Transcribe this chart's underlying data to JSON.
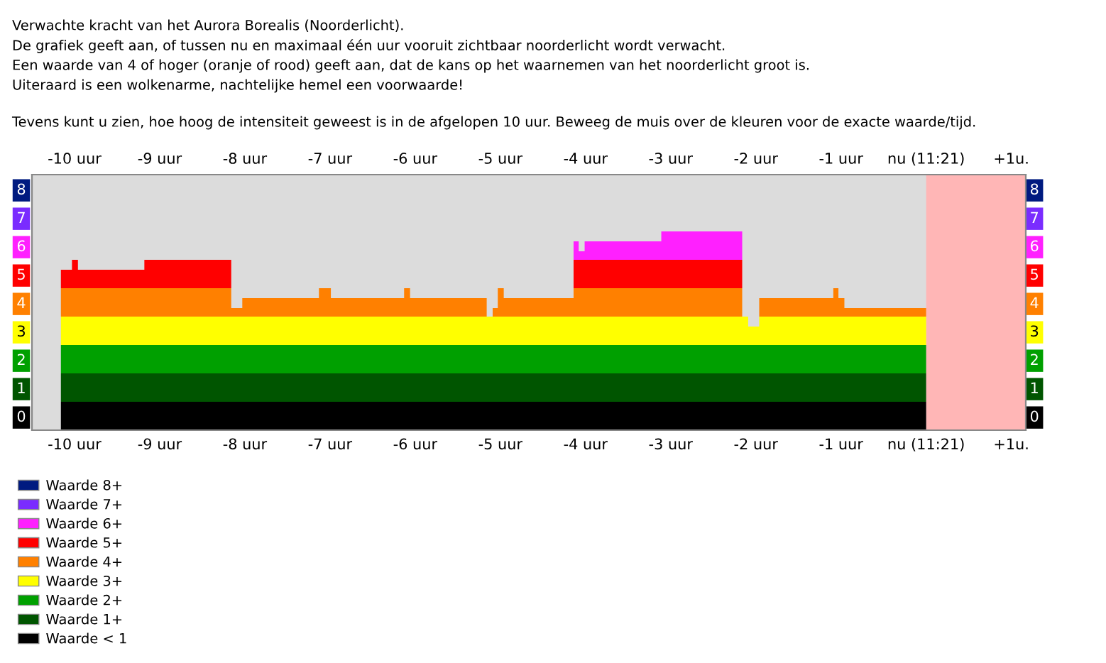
{
  "chart_data": {
    "type": "area",
    "stacked": true,
    "title": "Verwachte kracht van het Aurora Borealis (Noorderlicht).",
    "annotations": [
      "De grafiek geeft aan, of tussen nu en maximaal één uur vooruit zichtbaar noorderlicht wordt verwacht.",
      "Een waarde van 4 of hoger (oranje of rood) geeft aan, dat de kans op het waarnemen van het noorderlicht groot is.",
      "Uiteraard is een wolkenarme, nachtelijke hemel een voorwaarde!",
      "Tevens kunt u zien, hoe hoog de intensiteit geweest is in de afgelopen 10 uur. Beweeg de muis over de kleuren voor de exacte waarde/tijd."
    ],
    "x": [
      -10.16,
      -10.03,
      -10.03,
      -9.96,
      -9.96,
      -9.18,
      -9.18,
      -8.16,
      -8.16,
      -8.03,
      -8.03,
      -7.13,
      -7.13,
      -6.99,
      -6.99,
      -6.13,
      -6.13,
      -6.06,
      -6.06,
      -5.16,
      -5.16,
      -5.09,
      -5.09,
      -5.03,
      -5.03,
      -4.96,
      -4.96,
      -4.14,
      -4.14,
      -4.08,
      -4.08,
      -4.01,
      -4.01,
      -3.11,
      -3.11,
      -2.16,
      -2.16,
      -2.09,
      -2.09,
      -1.96,
      -1.96,
      -1.09,
      -1.09,
      -1.03,
      -1.03,
      -0.96,
      -0.96,
      0
    ],
    "series": [
      {
        "name": "Waarde < 1",
        "color": "#000000",
        "values": [
          1,
          1,
          1,
          1,
          1,
          1,
          1,
          1,
          1,
          1,
          1,
          1,
          1,
          1,
          1,
          1,
          1,
          1,
          1,
          1,
          1,
          1,
          1,
          1,
          1,
          1,
          1,
          1,
          1,
          1,
          1,
          1,
          1,
          1,
          1,
          1,
          1,
          1,
          1,
          1,
          1,
          1,
          1,
          1,
          1,
          1,
          1,
          1
        ]
      },
      {
        "name": "Waarde 1+",
        "color": "#005500",
        "values": [
          1,
          1,
          1,
          1,
          1,
          1,
          1,
          1,
          1,
          1,
          1,
          1,
          1,
          1,
          1,
          1,
          1,
          1,
          1,
          1,
          1,
          1,
          1,
          1,
          1,
          1,
          1,
          1,
          1,
          1,
          1,
          1,
          1,
          1,
          1,
          1,
          1,
          1,
          1,
          1,
          1,
          1,
          1,
          1,
          1,
          1,
          1,
          1
        ]
      },
      {
        "name": "Waarde 2+",
        "color": "#00a000",
        "values": [
          1,
          1,
          1,
          1,
          1,
          1,
          1,
          1,
          1,
          1,
          1,
          1,
          1,
          1,
          1,
          1,
          1,
          1,
          1,
          1,
          1,
          1,
          1,
          1,
          1,
          1,
          1,
          1,
          1,
          1,
          1,
          1,
          1,
          1,
          1,
          1,
          1,
          1,
          1,
          1,
          1,
          1,
          1,
          1,
          1,
          1,
          1,
          1
        ]
      },
      {
        "name": "Waarde 3+",
        "color": "#ffff00",
        "values": [
          1,
          1,
          1,
          1,
          1,
          1,
          1,
          1,
          1,
          1,
          1,
          1,
          1,
          1,
          1,
          1,
          1,
          1,
          1,
          1,
          1,
          1,
          1,
          1,
          1,
          1,
          1,
          1,
          1,
          1,
          1,
          1,
          1,
          1,
          1,
          1,
          1,
          1,
          0.65,
          0.65,
          1,
          1,
          1,
          1,
          1,
          1,
          1,
          1
        ]
      },
      {
        "name": "Waarde 4+",
        "color": "#ff8000",
        "values": [
          1,
          1,
          1,
          1,
          1,
          1,
          1,
          1,
          0.3,
          0.3,
          0.65,
          0.65,
          1,
          1,
          0.65,
          0.65,
          1,
          1,
          0.65,
          0.65,
          0,
          0,
          0.3,
          0.3,
          1,
          1,
          0.65,
          0.65,
          1,
          1,
          1,
          1,
          1,
          1,
          1,
          1,
          0,
          0,
          0,
          0,
          0.65,
          0.65,
          1,
          1,
          0.65,
          0.65,
          0.3,
          0.3
        ]
      },
      {
        "name": "Waarde 5+",
        "color": "#ff0000",
        "values": [
          0.65,
          0.65,
          1,
          1,
          0.65,
          0.65,
          1,
          1,
          0,
          0,
          0,
          0,
          0,
          0,
          0,
          0,
          0,
          0,
          0,
          0,
          0,
          0,
          0,
          0,
          0,
          0,
          0,
          0,
          1,
          1,
          1,
          1,
          1,
          1,
          1,
          1,
          0,
          0,
          0,
          0,
          0,
          0,
          0,
          0,
          0,
          0,
          0,
          0
        ]
      },
      {
        "name": "Waarde 6+",
        "color": "#ff20ff",
        "values": [
          0,
          0,
          0,
          0,
          0,
          0,
          0,
          0,
          0,
          0,
          0,
          0,
          0,
          0,
          0,
          0,
          0,
          0,
          0,
          0,
          0,
          0,
          0,
          0,
          0,
          0,
          0,
          0,
          0.65,
          0.65,
          0.3,
          0.3,
          0.65,
          0.65,
          1,
          1,
          0,
          0,
          0,
          0,
          0,
          0,
          0,
          0,
          0,
          0,
          0,
          0
        ]
      },
      {
        "name": "Waarde 7+",
        "color": "#7a2cff",
        "values": [
          null,
          null,
          null,
          null,
          null,
          null,
          null,
          null,
          null,
          null,
          null,
          null,
          null,
          null,
          null,
          null,
          null,
          null,
          null,
          null,
          null,
          null,
          null,
          null,
          null,
          null,
          null,
          null,
          null,
          null,
          null,
          null,
          null,
          null,
          null,
          null,
          null,
          null,
          null,
          null,
          null,
          null,
          null,
          null,
          null,
          null,
          null,
          null
        ]
      },
      {
        "name": "Waarde 8+",
        "color": "#001a80",
        "values": [
          null,
          null,
          null,
          null,
          null,
          null,
          null,
          null,
          null,
          null,
          null,
          null,
          null,
          null,
          null,
          null,
          null,
          null,
          null,
          null,
          null,
          null,
          null,
          null,
          null,
          null,
          null,
          null,
          null,
          null,
          null,
          null,
          null,
          null,
          null,
          null,
          null,
          null,
          null,
          null,
          null,
          null,
          null,
          null,
          null,
          null,
          null,
          null
        ]
      }
    ],
    "xlim": [
      -10.5,
      1.17
    ],
    "xticks": [
      {
        "value": -10,
        "label": "-10 uur"
      },
      {
        "value": -9,
        "label": "-9 uur"
      },
      {
        "value": -8,
        "label": "-8 uur"
      },
      {
        "value": -7,
        "label": "-7 uur"
      },
      {
        "value": -6,
        "label": "-6 uur"
      },
      {
        "value": -5,
        "label": "-5 uur"
      },
      {
        "value": -4,
        "label": "-4 uur"
      },
      {
        "value": -3,
        "label": "-3 uur"
      },
      {
        "value": -2,
        "label": "-2 uur"
      },
      {
        "value": -1,
        "label": "-1 uur"
      },
      {
        "value": 0,
        "label": "nu (11:21)"
      },
      {
        "value": 1,
        "label": "+1u."
      }
    ],
    "x2lim": [
      -10.5,
      1.17
    ],
    "x2ticks": [
      {
        "value": -10,
        "label": "-10 uur"
      },
      {
        "value": -9,
        "label": "-9 uur"
      },
      {
        "value": -8,
        "label": "-8 uur"
      },
      {
        "value": -7,
        "label": "-7 uur"
      },
      {
        "value": -6,
        "label": "-6 uur"
      },
      {
        "value": -5,
        "label": "-5 uur"
      },
      {
        "value": -4,
        "label": "-4 uur"
      },
      {
        "value": -3,
        "label": "-3 uur"
      },
      {
        "value": -2,
        "label": "-2 uur"
      },
      {
        "value": -1,
        "label": "-1 uur"
      },
      {
        "value": 0,
        "label": "nu (11:21)"
      },
      {
        "value": 1,
        "label": "+1u."
      }
    ],
    "ylim": [
      0,
      9
    ],
    "yticks": [
      {
        "value": 0.5,
        "label": "0"
      },
      {
        "value": 1.5,
        "label": "1"
      },
      {
        "value": 2.5,
        "label": "2"
      },
      {
        "value": 3.5,
        "label": "3"
      },
      {
        "value": 4.5,
        "label": "4"
      },
      {
        "value": 5.5,
        "label": "5"
      },
      {
        "value": 6.5,
        "label": "6"
      },
      {
        "value": 7.5,
        "label": "7"
      },
      {
        "value": 8.5,
        "label": "8"
      }
    ],
    "y2lim": [
      0,
      9
    ],
    "y2ticks": [
      {
        "value": 0.5,
        "label": "0"
      },
      {
        "value": 1.5,
        "label": "1"
      },
      {
        "value": 2.5,
        "label": "2"
      },
      {
        "value": 3.5,
        "label": "3"
      },
      {
        "value": 4.5,
        "label": "4"
      },
      {
        "value": 5.5,
        "label": "5"
      },
      {
        "value": 6.5,
        "label": "6"
      },
      {
        "value": 7.5,
        "label": "7"
      },
      {
        "value": 8.5,
        "label": "8"
      }
    ],
    "bands": [
      {
        "axis": "x",
        "from": 0,
        "to": 1.17,
        "color": "#ffb6b6"
      }
    ],
    "grid": false,
    "legend": "bottom"
  }
}
